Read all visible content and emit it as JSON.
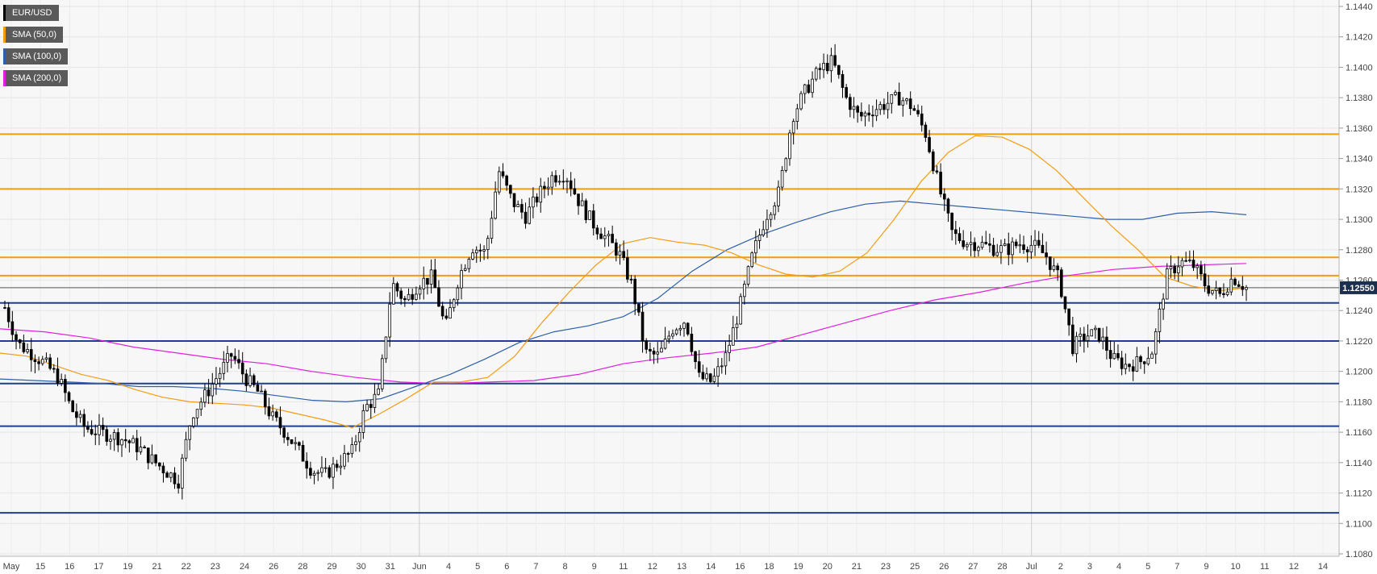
{
  "chart_data": {
    "type": "candlestick",
    "symbol": "EUR/USD",
    "legend": [
      {
        "label": "EUR/USD",
        "color": "#000000"
      },
      {
        "label": "SMA (50,0)",
        "color": "#f39c12"
      },
      {
        "label": "SMA (100,0)",
        "color": "#2e5fa8"
      },
      {
        "label": "SMA (200,0)",
        "color": "#e020e0"
      }
    ],
    "legend_placement": "top-left",
    "ylim": [
      1.108,
      1.144
    ],
    "y_ticks": [
      "1.1440",
      "1.1420",
      "1.1400",
      "1.1380",
      "1.1360",
      "1.1340",
      "1.1320",
      "1.1300",
      "1.1280",
      "1.1260",
      "1.1240",
      "1.1220",
      "1.1200",
      "1.1180",
      "1.1160",
      "1.1140",
      "1.1120",
      "1.1100",
      "1.1080"
    ],
    "x_ticks": [
      "May",
      "15",
      "16",
      "17",
      "19",
      "21",
      "22",
      "23",
      "24",
      "26",
      "28",
      "29",
      "30",
      "31",
      "Jun",
      "4",
      "5",
      "6",
      "7",
      "8",
      "9",
      "11",
      "12",
      "13",
      "14",
      "16",
      "18",
      "19",
      "20",
      "21",
      "23",
      "25",
      "26",
      "27",
      "28",
      "Jul",
      "2",
      "3",
      "4",
      "5",
      "7",
      "9",
      "10",
      "11",
      "12",
      "14"
    ],
    "month_separators": [
      "Jun",
      "Jul"
    ],
    "current_price": "1.12550",
    "current_price_value": 1.1255,
    "resistance_levels": [
      1.1356,
      1.132,
      1.1275,
      1.1263
    ],
    "support_levels": [
      1.1245,
      1.122,
      1.1192,
      1.1164,
      1.1107
    ],
    "level_colors": {
      "resistance": "#f39c12",
      "support": "#1f3f8f"
    },
    "price_path": [
      1.1242,
      1.1218,
      1.1212,
      1.1205,
      1.1196,
      1.1175,
      1.1163,
      1.116,
      1.1158,
      1.1155,
      1.115,
      1.1142,
      1.1135,
      1.1128,
      1.1172,
      1.1184,
      1.1198,
      1.1211,
      1.1196,
      1.1186,
      1.117,
      1.116,
      1.1148,
      1.1135,
      1.1132,
      1.114,
      1.1147,
      1.1176,
      1.1185,
      1.1258,
      1.1246,
      1.1258,
      1.1262,
      1.1228,
      1.1262,
      1.1282,
      1.1278,
      1.1332,
      1.1312,
      1.1302,
      1.1316,
      1.1328,
      1.133,
      1.1312,
      1.1298,
      1.1288,
      1.1278,
      1.1256,
      1.1212,
      1.121,
      1.1228,
      1.1234,
      1.1196,
      1.1193,
      1.121,
      1.124,
      1.1276,
      1.1302,
      1.1318,
      1.1368,
      1.1385,
      1.1398,
      1.1404,
      1.138,
      1.1367,
      1.1372,
      1.1376,
      1.138,
      1.1374,
      1.1356,
      1.132,
      1.129,
      1.1285,
      1.1284,
      1.1281,
      1.128,
      1.1284,
      1.1283,
      1.1276,
      1.126,
      1.1216,
      1.1224,
      1.1224,
      1.1208,
      1.1204,
      1.1206,
      1.1214,
      1.1262,
      1.1272,
      1.127,
      1.1256,
      1.125,
      1.1262,
      1.1255
    ],
    "sma50": [
      1.1212,
      1.121,
      1.1204,
      1.1198,
      1.1194,
      1.1188,
      1.1183,
      1.118,
      1.1179,
      1.1178,
      1.1176,
      1.1172,
      1.1168,
      1.1163,
      1.1172,
      1.1182,
      1.1193,
      1.1193,
      1.1196,
      1.121,
      1.1232,
      1.1252,
      1.127,
      1.1284,
      1.1288,
      1.1285,
      1.1283,
      1.1278,
      1.127,
      1.1264,
      1.1262,
      1.1266,
      1.1278,
      1.13,
      1.1325,
      1.1344,
      1.1355,
      1.1354,
      1.1346,
      1.1332,
      1.1314,
      1.1296,
      1.128,
      1.1262,
      1.1256,
      1.1253,
      1.1255
    ],
    "sma100": [
      1.1195,
      1.1194,
      1.1193,
      1.1192,
      1.119,
      1.119,
      1.1189,
      1.1187,
      1.1184,
      1.1181,
      1.118,
      1.1182,
      1.119,
      1.1198,
      1.1208,
      1.1219,
      1.1226,
      1.123,
      1.1236,
      1.1248,
      1.1266,
      1.128,
      1.129,
      1.1298,
      1.1305,
      1.131,
      1.1312,
      1.131,
      1.1308,
      1.1306,
      1.1304,
      1.1302,
      1.13,
      1.13,
      1.1304,
      1.1305,
      1.1303
    ],
    "sma200": [
      1.1228,
      1.1226,
      1.1222,
      1.1216,
      1.1212,
      1.1208,
      1.1205,
      1.12,
      1.1196,
      1.1193,
      1.1192,
      1.1193,
      1.1194,
      1.1198,
      1.1205,
      1.1209,
      1.1212,
      1.1216,
      1.1224,
      1.1232,
      1.124,
      1.1247,
      1.1252,
      1.1258,
      1.1263,
      1.1267,
      1.1269,
      1.127,
      1.1271
    ]
  }
}
